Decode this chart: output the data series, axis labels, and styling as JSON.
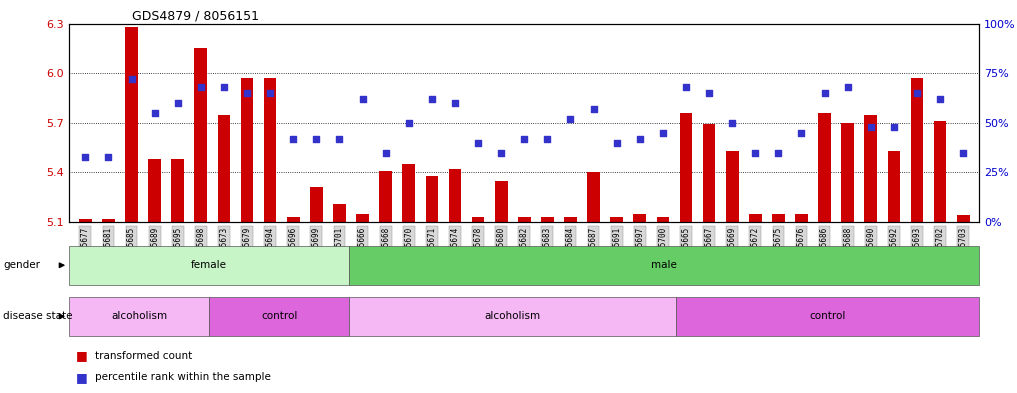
{
  "title": "GDS4879 / 8056151",
  "samples": [
    "GSM1085677",
    "GSM1085681",
    "GSM1085685",
    "GSM1085689",
    "GSM1085695",
    "GSM1085698",
    "GSM1085673",
    "GSM1085679",
    "GSM1085694",
    "GSM1085696",
    "GSM1085699",
    "GSM1085701",
    "GSM1085666",
    "GSM1085668",
    "GSM1085670",
    "GSM1085671",
    "GSM1085674",
    "GSM1085678",
    "GSM1085680",
    "GSM1085682",
    "GSM1085683",
    "GSM1085684",
    "GSM1085687",
    "GSM1085691",
    "GSM1085697",
    "GSM1085700",
    "GSM1085665",
    "GSM1085667",
    "GSM1085669",
    "GSM1085672",
    "GSM1085675",
    "GSM1085676",
    "GSM1085686",
    "GSM1085688",
    "GSM1085690",
    "GSM1085692",
    "GSM1085693",
    "GSM1085702",
    "GSM1085703"
  ],
  "bar_values": [
    5.12,
    5.12,
    6.28,
    5.48,
    5.48,
    6.15,
    5.75,
    5.97,
    5.97,
    5.13,
    5.31,
    5.21,
    5.15,
    5.41,
    5.45,
    5.38,
    5.42,
    5.13,
    5.35,
    5.13,
    5.13,
    5.13,
    5.4,
    5.13,
    5.15,
    5.13,
    5.76,
    5.69,
    5.53,
    5.15,
    5.15,
    5.15,
    5.76,
    5.7,
    5.75,
    5.53,
    5.97,
    5.71,
    5.14
  ],
  "percentile_values": [
    33,
    33,
    72,
    55,
    60,
    68,
    68,
    65,
    65,
    42,
    42,
    42,
    62,
    35,
    50,
    62,
    60,
    40,
    35,
    42,
    42,
    52,
    57,
    40,
    42,
    45,
    68,
    65,
    50,
    35,
    35,
    45,
    65,
    68,
    48,
    48,
    65,
    62,
    35
  ],
  "gender_groups": [
    {
      "label": "female",
      "start": 0,
      "end": 12,
      "color": "#c8f5c8"
    },
    {
      "label": "male",
      "start": 12,
      "end": 39,
      "color": "#66cc66"
    }
  ],
  "disease_groups": [
    {
      "label": "alcoholism",
      "start": 0,
      "end": 6,
      "color": "#f5b8f5"
    },
    {
      "label": "control",
      "start": 6,
      "end": 12,
      "color": "#dd66dd"
    },
    {
      "label": "alcoholism",
      "start": 12,
      "end": 26,
      "color": "#f5b8f5"
    },
    {
      "label": "control",
      "start": 26,
      "end": 39,
      "color": "#dd66dd"
    }
  ],
  "ylim_left": [
    5.1,
    6.3
  ],
  "ylim_right": [
    0,
    100
  ],
  "yticks_left": [
    5.1,
    5.4,
    5.7,
    6.0,
    6.3
  ],
  "yticks_right": [
    0,
    25,
    50,
    75,
    100
  ],
  "ytick_labels_right": [
    "0%",
    "25%",
    "50%",
    "75%",
    "100%"
  ],
  "bar_color": "#cc0000",
  "dot_color": "#3333cc",
  "bar_width": 0.55,
  "background_color": "#ffffff",
  "legend_items": [
    {
      "label": "transformed count",
      "color": "#cc0000"
    },
    {
      "label": "percentile rank within the sample",
      "color": "#3333cc"
    }
  ],
  "gender_label": "gender",
  "disease_label": "disease state"
}
